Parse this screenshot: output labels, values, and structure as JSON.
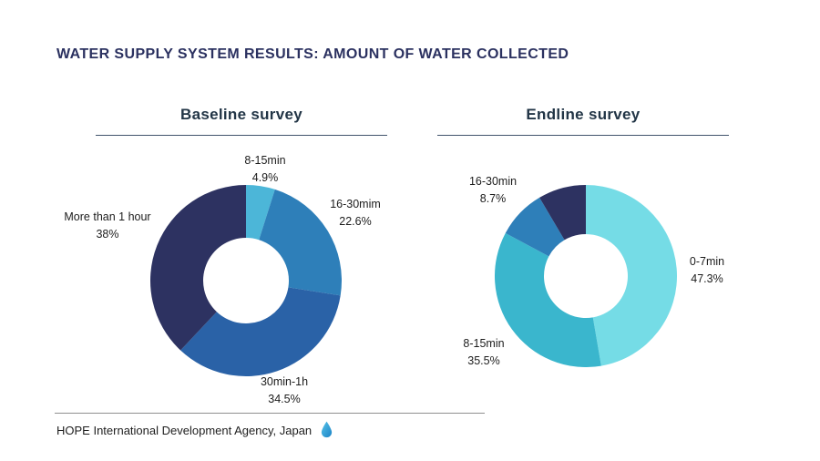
{
  "page": {
    "title": "WATER SUPPLY SYSTEM RESULTS: AMOUNT OF WATER COLLECTED",
    "footer": {
      "text": "HOPE International Development Agency, Japan",
      "icon": "water-drop-icon",
      "icon_color": "#2b9dd8"
    },
    "background_color": "#ffffff",
    "title_color": "#2b3160"
  },
  "chart_data": [
    {
      "type": "pie",
      "donut": true,
      "title": "Baseline survey",
      "start_angle": "top",
      "direction": "clockwise",
      "legend_position": "outside-labels",
      "segments": [
        {
          "label": "8-15min",
          "value": 4.9,
          "value_label": "4.9%",
          "color": "#4cb6d8"
        },
        {
          "label": "16-30mim",
          "value": 22.6,
          "value_label": "22.6%",
          "color": "#2e7fb9"
        },
        {
          "label": "30min-1h",
          "value": 34.5,
          "value_label": "34.5%",
          "color": "#2a62a7"
        },
        {
          "label": "More than 1 hour",
          "value": 38,
          "value_label": "38%",
          "color": "#2d3261"
        }
      ]
    },
    {
      "type": "pie",
      "donut": true,
      "title": "Endline survey",
      "start_angle": "top",
      "direction": "clockwise",
      "legend_position": "outside-labels",
      "segments": [
        {
          "label": "0-7min",
          "value": 47.3,
          "value_label": "47.3%",
          "color": "#75dce6"
        },
        {
          "label": "8-15min",
          "value": 35.5,
          "value_label": "35.5%",
          "color": "#3ab6cd"
        },
        {
          "label": "16-30min",
          "value": 8.7,
          "value_label": "8.7%",
          "color": "#2e7fb9"
        },
        {
          "label": "",
          "value": 8.5,
          "value_label": "",
          "color": "#2d3261"
        }
      ]
    }
  ]
}
